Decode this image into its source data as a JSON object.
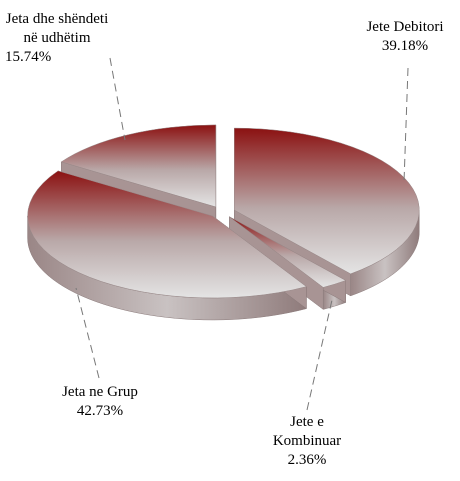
{
  "chart_data": {
    "type": "pie3d",
    "categories": [
      "Jete Debitori",
      "Jete e Kombinuar",
      "Jeta ne Grup",
      "Jeta dhe shëndeti në udhëtim"
    ],
    "values": [
      39.18,
      2.36,
      42.73,
      15.74
    ],
    "value_labels": [
      "39.18%",
      "2.36%",
      "42.73%",
      "15.74%"
    ],
    "color": "#8b1111"
  }
}
